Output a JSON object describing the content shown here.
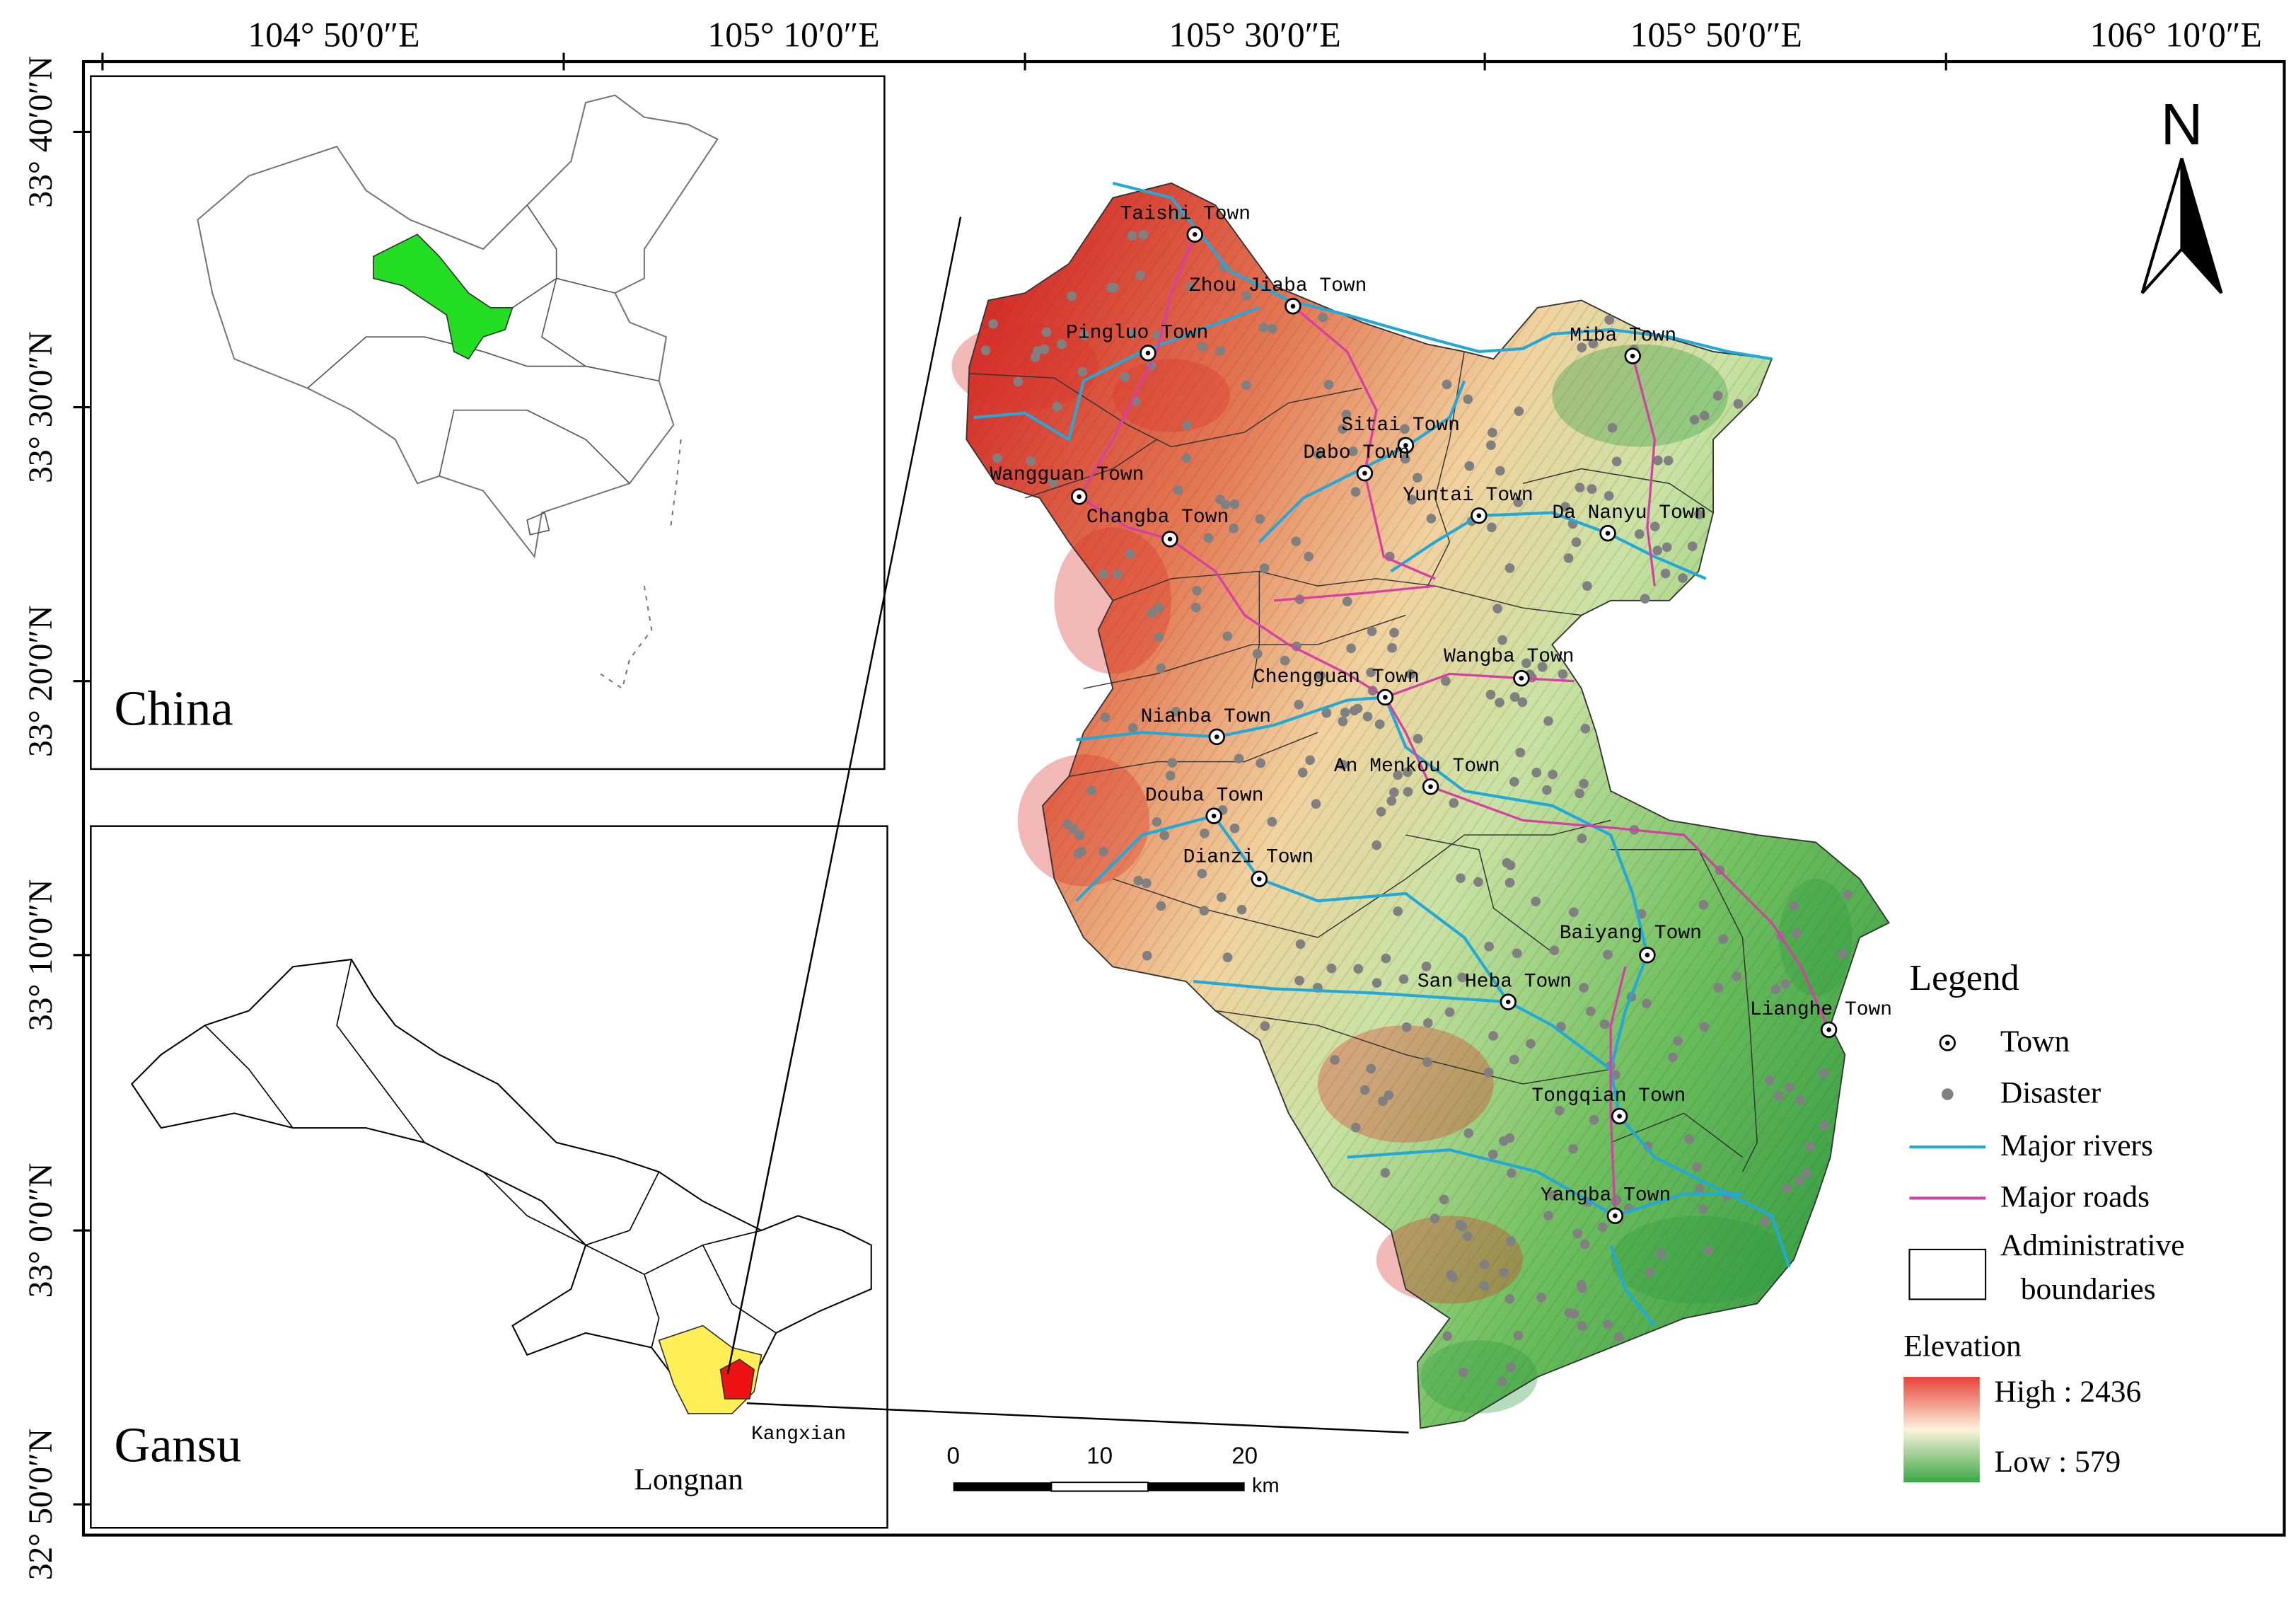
{
  "graticule": {
    "longitudes": [
      "104° 50′0″E",
      "105° 10′0″E",
      "105° 30′0″E",
      "105° 50′0″E",
      "106° 10′0″E"
    ],
    "latitudes": [
      "33° 40′0″N",
      "33° 30′0″N",
      "33° 20′0″N",
      "33° 10′0″N",
      "33° 0′0″N",
      "32° 50′0″N"
    ]
  },
  "insets": {
    "china": {
      "label": "China"
    },
    "gansu": {
      "label": "Gansu",
      "region": "Longnan",
      "county": "Kangxian"
    }
  },
  "main_map": {
    "towns": [
      "Taishi Town",
      "Zhou Jiaba Town",
      "Pingluo Town",
      "Miba Town",
      "Sitai Town",
      "Dabo Town",
      "Wangguan Town",
      "Yuntai Town",
      "Changba Town",
      "Da Nanyu Town",
      "Wangba Town",
      "Chengguan Town",
      "Nianba Town",
      "An Menkou Town",
      "Douba Town",
      "Dianzi Town",
      "Baiyang  Town",
      "San Heba Town",
      "Lianghe Town",
      "Tongqian Town",
      "Yangba Town"
    ]
  },
  "legend": {
    "title": "Legend",
    "items": [
      "Town",
      "Disaster",
      "Major rivers",
      "Major roads"
    ],
    "boundaries": [
      "Administrative",
      "boundaries"
    ],
    "elevation": {
      "title": "Elevation",
      "high": "High : 2436",
      "low": "Low : 579"
    }
  },
  "scale_bar": {
    "ticks": [
      "0",
      "10",
      "20"
    ],
    "unit": "km"
  },
  "north_arrow": "N"
}
